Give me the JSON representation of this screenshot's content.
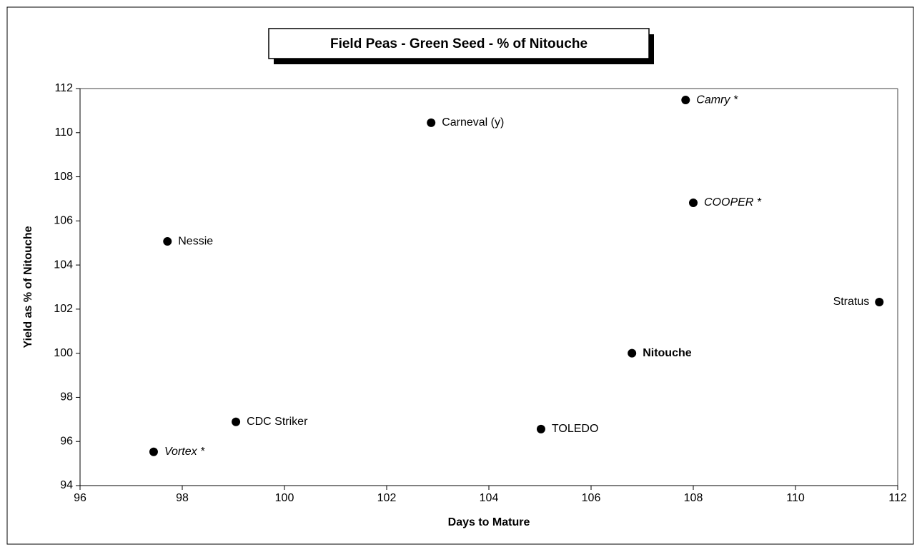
{
  "chart_data": {
    "type": "scatter",
    "title": "Field Peas - Green Seed - % of Nitouche",
    "x_label": "Days to Mature",
    "y_label": "Yield as % of Nitouche",
    "labels": [
      "Camry *",
      "Carneval (y)",
      "COOPER *",
      "Nessie",
      "Stratus",
      "Nitouche",
      "CDC Striker",
      "TOLEDO",
      "Vortex *"
    ],
    "label_styles": [
      "italic",
      "normal",
      "italic",
      "normal",
      "normal",
      "bold",
      "normal",
      "normal",
      "italic"
    ],
    "x": [
      107.85,
      102.87,
      108.0,
      97.71,
      111.64,
      106.8,
      99.05,
      105.02,
      97.44
    ],
    "values": [
      111.48,
      110.45,
      106.82,
      105.07,
      102.32,
      100.0,
      96.89,
      96.56,
      95.53
    ],
    "color": "#000000",
    "xlim": [
      96,
      112
    ],
    "xticks": [
      96,
      98,
      100,
      102,
      104,
      106,
      108,
      110,
      112
    ],
    "ylim": [
      94,
      112
    ],
    "yticks": [
      94,
      96,
      98,
      100,
      102,
      104,
      106,
      108,
      110,
      112
    ]
  }
}
